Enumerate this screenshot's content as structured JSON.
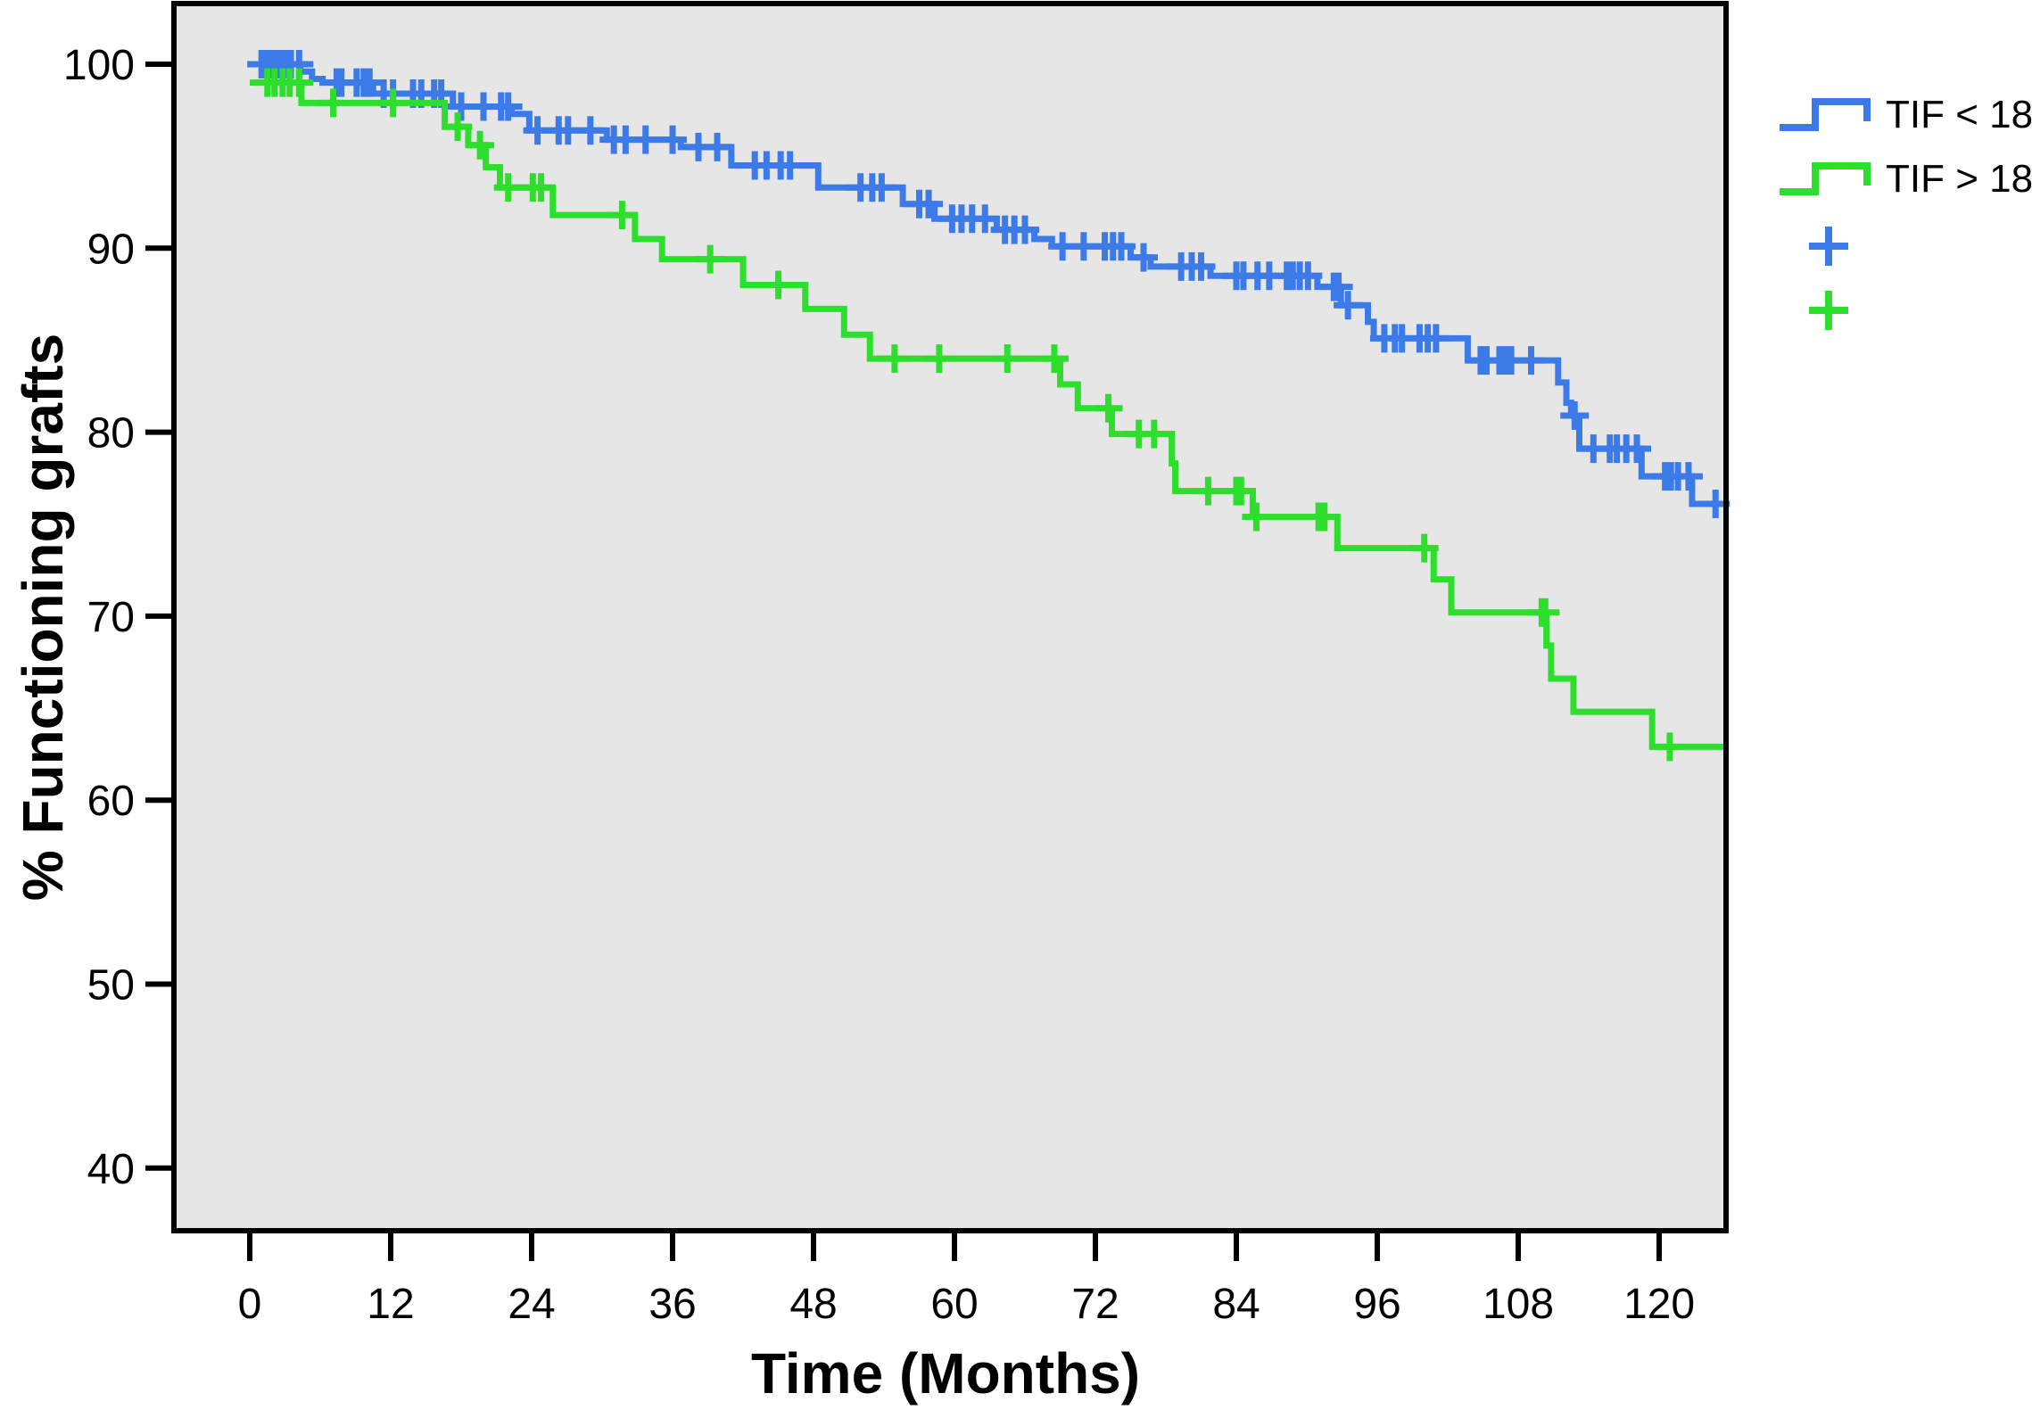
{
  "chart_data": {
    "type": "line",
    "subtype": "kaplan-meier-step",
    "title": "",
    "xlabel": "Time (Months)",
    "ylabel": "% Functioning grafts",
    "x_ticks": [
      0,
      12,
      24,
      36,
      48,
      60,
      72,
      84,
      96,
      108,
      120
    ],
    "y_ticks": [
      100,
      90,
      80,
      70,
      60,
      50,
      40
    ],
    "xlim": [
      -6.5,
      125.7
    ],
    "ylim": [
      36.6,
      103.3
    ],
    "x_end": 125.7,
    "grid": "off",
    "plot_bg": "#e6e6e6",
    "frame_color": "#000000",
    "legend_position": "right-top",
    "series": [
      {
        "id": "tif-lt-18",
        "name": "TIF < 18",
        "color": "#3c7ae8",
        "steps": [
          [
            0,
            100
          ],
          [
            4.3,
            99.6
          ],
          [
            5.3,
            99.2
          ],
          [
            6.2,
            99.0
          ],
          [
            10.5,
            98.4
          ],
          [
            17.3,
            97.7
          ],
          [
            22.3,
            97.3
          ],
          [
            23.8,
            96.4
          ],
          [
            30.4,
            95.9
          ],
          [
            36.7,
            95.5
          ],
          [
            41,
            94.5
          ],
          [
            48.4,
            93.3
          ],
          [
            55.6,
            92.4
          ],
          [
            58.3,
            91.6
          ],
          [
            63.6,
            91.0
          ],
          [
            66.8,
            90.5
          ],
          [
            68.3,
            90.1
          ],
          [
            75,
            89.5
          ],
          [
            76.7,
            89.0
          ],
          [
            81.8,
            88.5
          ],
          [
            90.9,
            87.9
          ],
          [
            92.9,
            86.9
          ],
          [
            95.2,
            86.0
          ],
          [
            95.7,
            85.1
          ],
          [
            103.7,
            83.9
          ],
          [
            111.4,
            82.7
          ],
          [
            112.1,
            81.6
          ],
          [
            112.5,
            80.9
          ],
          [
            113.2,
            79.1
          ],
          [
            118.5,
            77.6
          ],
          [
            122.8,
            76.1
          ]
        ],
        "censored": [
          [
            1,
            100
          ],
          [
            1.4,
            100
          ],
          [
            1.8,
            100
          ],
          [
            2.2,
            100
          ],
          [
            2.6,
            100
          ],
          [
            3,
            100
          ],
          [
            3.5,
            100
          ],
          [
            4.2,
            100
          ],
          [
            7.4,
            99
          ],
          [
            7.8,
            99
          ],
          [
            9.1,
            99
          ],
          [
            9.7,
            99
          ],
          [
            10.2,
            99
          ],
          [
            11.4,
            98.4
          ],
          [
            12.2,
            98.4
          ],
          [
            13.9,
            98.4
          ],
          [
            14.6,
            98.4
          ],
          [
            15.7,
            98.4
          ],
          [
            16.3,
            98.4
          ],
          [
            18,
            97.7
          ],
          [
            19.9,
            97.7
          ],
          [
            21.4,
            97.7
          ],
          [
            22,
            97.7
          ],
          [
            24.5,
            96.4
          ],
          [
            26.3,
            96.4
          ],
          [
            27.1,
            96.4
          ],
          [
            29,
            96.4
          ],
          [
            31,
            95.9
          ],
          [
            32,
            95.9
          ],
          [
            33.7,
            95.9
          ],
          [
            36,
            95.9
          ],
          [
            38.2,
            95.5
          ],
          [
            39.8,
            95.5
          ],
          [
            43,
            94.5
          ],
          [
            44,
            94.5
          ],
          [
            45.2,
            94.5
          ],
          [
            46,
            94.5
          ],
          [
            52,
            93.3
          ],
          [
            53,
            93.3
          ],
          [
            53.8,
            93.3
          ],
          [
            57,
            92.4
          ],
          [
            57.8,
            92.4
          ],
          [
            59.8,
            91.6
          ],
          [
            60.6,
            91.6
          ],
          [
            61.5,
            91.6
          ],
          [
            62.6,
            91.6
          ],
          [
            64.3,
            91.0
          ],
          [
            65.1,
            91.0
          ],
          [
            66,
            91.0
          ],
          [
            69.2,
            90.1
          ],
          [
            71,
            90.1
          ],
          [
            72.8,
            90.1
          ],
          [
            73.5,
            90.1
          ],
          [
            74.2,
            90.1
          ],
          [
            76.1,
            89.5
          ],
          [
            79.3,
            89.0
          ],
          [
            80.2,
            89.0
          ],
          [
            81,
            89.0
          ],
          [
            84,
            88.5
          ],
          [
            84.6,
            88.5
          ],
          [
            85.8,
            88.5
          ],
          [
            86.8,
            88.5
          ],
          [
            88.3,
            88.5
          ],
          [
            88.8,
            88.5
          ],
          [
            89.4,
            88.5
          ],
          [
            90.1,
            88.5
          ],
          [
            92.3,
            87.9
          ],
          [
            92.7,
            87.9
          ],
          [
            93.5,
            86.9
          ],
          [
            96.6,
            85.1
          ],
          [
            97.5,
            85.1
          ],
          [
            98.1,
            85.1
          ],
          [
            99.6,
            85.1
          ],
          [
            100.3,
            85.1
          ],
          [
            101,
            85.1
          ],
          [
            104.8,
            83.9
          ],
          [
            105.3,
            83.9
          ],
          [
            106.4,
            83.9
          ],
          [
            106.9,
            83.9
          ],
          [
            107.4,
            83.9
          ],
          [
            109.1,
            83.9
          ],
          [
            112.8,
            80.9
          ],
          [
            114.4,
            79.1
          ],
          [
            115.8,
            79.1
          ],
          [
            116.4,
            79.1
          ],
          [
            117.2,
            79.1
          ],
          [
            118.1,
            79.1
          ],
          [
            120.5,
            77.6
          ],
          [
            121,
            77.6
          ],
          [
            121.6,
            77.6
          ],
          [
            122.5,
            77.6
          ],
          [
            124.8,
            76.1
          ]
        ]
      },
      {
        "id": "tif-gt-18",
        "name": "TIF > 18",
        "color": "#2dde2d",
        "steps": [
          [
            0,
            99.0
          ],
          [
            4.4,
            97.9
          ],
          [
            16.6,
            96.6
          ],
          [
            18.6,
            95.6
          ],
          [
            20.1,
            94.4
          ],
          [
            21.3,
            93.3
          ],
          [
            25.8,
            91.8
          ],
          [
            32.8,
            90.5
          ],
          [
            35.1,
            89.4
          ],
          [
            42,
            88.0
          ],
          [
            47.3,
            86.7
          ],
          [
            50.6,
            85.3
          ],
          [
            52.8,
            84.0
          ],
          [
            69,
            82.6
          ],
          [
            70.5,
            81.3
          ],
          [
            73.4,
            79.9
          ],
          [
            78.5,
            78.3
          ],
          [
            78.8,
            76.8
          ],
          [
            85.4,
            75.4
          ],
          [
            92.6,
            73.7
          ],
          [
            100.8,
            72.0
          ],
          [
            102.3,
            70.2
          ],
          [
            110.4,
            68.4
          ],
          [
            110.8,
            66.6
          ],
          [
            112.7,
            64.8
          ],
          [
            119.4,
            62.9
          ]
        ],
        "censored": [
          [
            1.5,
            99
          ],
          [
            2.1,
            99
          ],
          [
            2.8,
            99
          ],
          [
            3.4,
            99
          ],
          [
            4.2,
            99
          ],
          [
            7.1,
            97.9
          ],
          [
            12.2,
            97.9
          ],
          [
            17.7,
            96.6
          ],
          [
            19.6,
            95.6
          ],
          [
            22,
            93.3
          ],
          [
            24.1,
            93.3
          ],
          [
            24.8,
            93.3
          ],
          [
            31.7,
            91.8
          ],
          [
            39.2,
            89.4
          ],
          [
            45,
            88.0
          ],
          [
            54.9,
            84.0
          ],
          [
            58.7,
            84.0
          ],
          [
            64.5,
            84.0
          ],
          [
            68.5,
            84.0
          ],
          [
            73.1,
            81.3
          ],
          [
            75.7,
            79.9
          ],
          [
            77,
            79.9
          ],
          [
            81.6,
            76.8
          ],
          [
            84,
            76.8
          ],
          [
            84.4,
            76.8
          ],
          [
            85.7,
            75.4
          ],
          [
            91,
            75.4
          ],
          [
            91.5,
            75.4
          ],
          [
            100,
            73.7
          ],
          [
            110,
            70.2
          ],
          [
            110.3,
            70.2
          ],
          [
            120.9,
            62.9
          ]
        ]
      }
    ],
    "legend": {
      "entries": [
        {
          "label": "TIF < 18",
          "type": "step-line",
          "color": "#3c7ae8"
        },
        {
          "label": "TIF > 18",
          "type": "step-line",
          "color": "#2dde2d"
        },
        {
          "label": "",
          "type": "censor-marker",
          "color": "#3c7ae8"
        },
        {
          "label": "",
          "type": "censor-marker",
          "color": "#2dde2d"
        }
      ]
    }
  }
}
